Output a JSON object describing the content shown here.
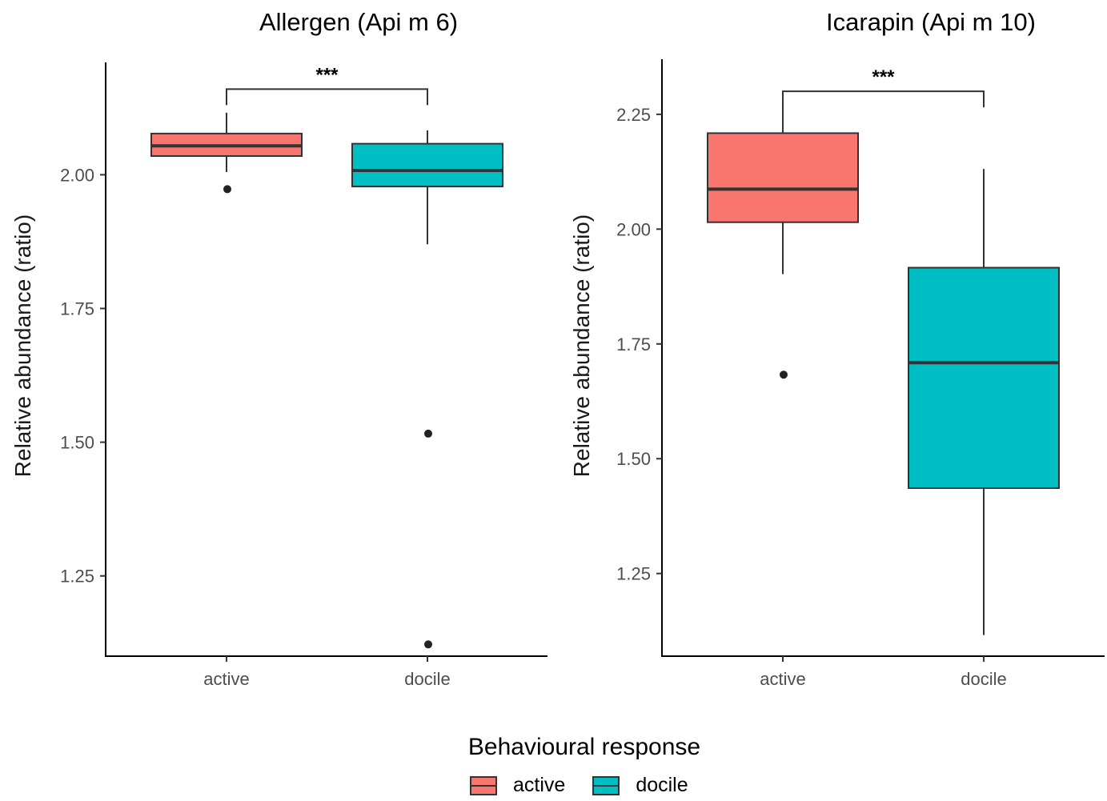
{
  "colors": {
    "active": "#F8766D",
    "docile": "#00BFC4"
  },
  "legend": {
    "title": "Behavioural response",
    "items": [
      {
        "label": "active",
        "color": "#F8766D"
      },
      {
        "label": "docile",
        "color": "#00BFC4"
      }
    ]
  },
  "chart_data": [
    {
      "type": "box",
      "title": "Allergen (Api m 6)",
      "xlabel": "",
      "ylabel": "Relative abundance (ratio)",
      "categories": [
        "active",
        "docile"
      ],
      "ylim": [
        1.1,
        2.21
      ],
      "yticks": [
        1.25,
        1.5,
        1.75,
        2.0
      ],
      "ytick_labels": [
        "1.25",
        "1.50",
        "1.75",
        "2.00"
      ],
      "boxes": [
        {
          "category": "active",
          "whisker_low": 2.005,
          "q1": 2.035,
          "median": 2.054,
          "q3": 2.077,
          "whisker_high": 2.116,
          "outliers": [
            1.973
          ]
        },
        {
          "category": "docile",
          "whisker_low": 1.87,
          "q1": 1.978,
          "median": 2.008,
          "q3": 2.058,
          "whisker_high": 2.083,
          "outliers": [
            1.516,
            1.122
          ]
        }
      ],
      "significance": {
        "label": "***",
        "between": [
          "active",
          "docile"
        ],
        "y": 2.16
      }
    },
    {
      "type": "box",
      "title": "Icarapin (Api m 10)",
      "xlabel": "",
      "ylabel": "Relative abundance (ratio)",
      "categories": [
        "active",
        "docile"
      ],
      "ylim": [
        1.07,
        2.37
      ],
      "yticks": [
        1.25,
        1.5,
        1.75,
        2.0,
        2.25
      ],
      "ytick_labels": [
        "1.25",
        "1.50",
        "1.75",
        "2.00",
        "2.25"
      ],
      "boxes": [
        {
          "category": "active",
          "whisker_low": 1.902,
          "q1": 2.015,
          "median": 2.087,
          "q3": 2.209,
          "whisker_high": 2.272,
          "outliers": [
            1.683
          ]
        },
        {
          "category": "docile",
          "whisker_low": 1.116,
          "q1": 1.436,
          "median": 1.709,
          "q3": 1.916,
          "whisker_high": 2.131,
          "outliers": []
        }
      ],
      "significance": {
        "label": "***",
        "between": [
          "active",
          "docile"
        ],
        "y": 2.3
      }
    }
  ]
}
